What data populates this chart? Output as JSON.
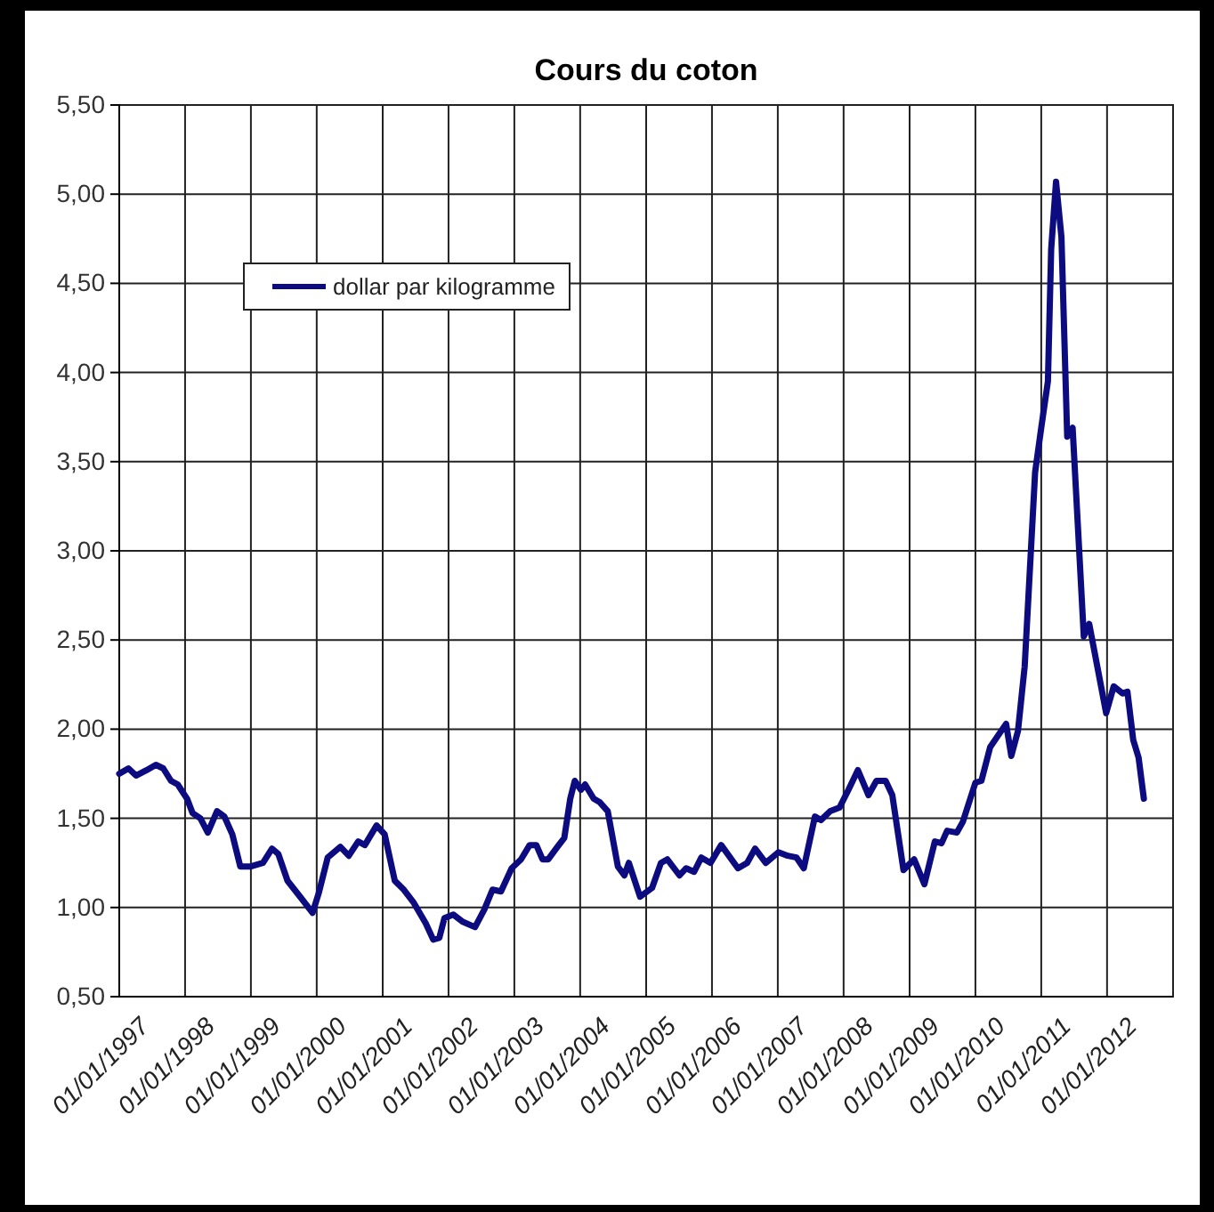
{
  "chart_data": {
    "type": "line",
    "title": "Cours du coton",
    "xlim": [
      "1997-01-01",
      "2013-01-01"
    ],
    "xticks": [
      {
        "value": "1997-01-01",
        "label": "01/01/1997"
      },
      {
        "value": "1998-01-01",
        "label": "01/01/1998"
      },
      {
        "value": "1999-01-01",
        "label": "01/01/1999"
      },
      {
        "value": "2000-01-01",
        "label": "01/01/2000"
      },
      {
        "value": "2001-01-01",
        "label": "01/01/2001"
      },
      {
        "value": "2002-01-01",
        "label": "01/01/2002"
      },
      {
        "value": "2003-01-01",
        "label": "01/01/2003"
      },
      {
        "value": "2004-01-01",
        "label": "01/01/2004"
      },
      {
        "value": "2005-01-01",
        "label": "01/01/2005"
      },
      {
        "value": "2006-01-01",
        "label": "01/01/2006"
      },
      {
        "value": "2007-01-01",
        "label": "01/01/2007"
      },
      {
        "value": "2008-01-01",
        "label": "01/01/2008"
      },
      {
        "value": "2009-01-01",
        "label": "01/01/2009"
      },
      {
        "value": "2010-01-01",
        "label": "01/01/2010"
      },
      {
        "value": "2011-01-01",
        "label": "01/01/2011"
      },
      {
        "value": "2012-01-01",
        "label": "01/01/2012"
      },
      {
        "value": "2013-01-01",
        "label": null
      }
    ],
    "ylim": [
      0.5,
      5.5
    ],
    "yticks": [
      {
        "value": 0.5,
        "label": "0,50"
      },
      {
        "value": 1,
        "label": "1,00"
      },
      {
        "value": 1.5,
        "label": "1,50"
      },
      {
        "value": 2,
        "label": "2,00"
      },
      {
        "value": 2.5,
        "label": "2,50"
      },
      {
        "value": 3,
        "label": "3,00"
      },
      {
        "value": 3.5,
        "label": "3,50"
      },
      {
        "value": 4,
        "label": "4,00"
      },
      {
        "value": 4.5,
        "label": "4,50"
      },
      {
        "value": 5,
        "label": "5,00"
      },
      {
        "value": 5.5,
        "label": "5,50"
      }
    ],
    "grid": true,
    "legend": "top left",
    "marker": "none",
    "line_style": "solid",
    "series": [
      {
        "name": "dollar par kilogramme",
        "color": "#0c0c80",
        "x": [
          "1997-01-01",
          "1997-02-21",
          "1997-04-04",
          "1997-06-02",
          "1997-07-23",
          "1997-09-02",
          "1997-10-15",
          "1997-11-21",
          "1998-01-12",
          "1998-02-11",
          "1998-03-27",
          "1998-05-07",
          "1998-06-27",
          "1998-08-07",
          "1998-09-20",
          "1998-11-03",
          "1999-01-01",
          "1999-03-09",
          "1999-04-28",
          "1999-06-02",
          "1999-07-23",
          "1999-10-01",
          "1999-12-09",
          "2000-01-12",
          "2000-03-02",
          "2000-05-11",
          "2000-06-27",
          "2000-08-18",
          "2000-09-24",
          "2000-11-28",
          "2001-01-12",
          "2001-03-09",
          "2001-04-28",
          "2001-06-20",
          "2001-08-28",
          "2001-10-08",
          "2001-11-11",
          "2001-12-09",
          "2002-01-28",
          "2002-03-20",
          "2002-05-28",
          "2002-07-19",
          "2002-09-02",
          "2002-10-19",
          "2002-12-17",
          "2003-02-07",
          "2003-03-27",
          "2003-05-03",
          "2003-06-06",
          "2003-07-08",
          "2003-08-28",
          "2003-10-05",
          "2003-11-07",
          "2003-12-02",
          "2004-01-05",
          "2004-01-28",
          "2004-03-16",
          "2004-04-19",
          "2004-06-02",
          "2004-07-28",
          "2004-09-02",
          "2004-09-27",
          "2004-11-28",
          "2005-02-03",
          "2005-03-24",
          "2005-04-28",
          "2005-07-05",
          "2005-08-11",
          "2005-09-24",
          "2005-11-03",
          "2005-12-24",
          "2006-02-21",
          "2006-05-25",
          "2006-07-15",
          "2006-08-28",
          "2006-10-26",
          "2007-01-05",
          "2007-02-25",
          "2007-04-15",
          "2007-05-25",
          "2007-07-26",
          "2007-08-28",
          "2007-10-19",
          "2007-12-09",
          "2008-01-28",
          "2008-03-20",
          "2008-05-18",
          "2008-07-01",
          "2008-08-21",
          "2008-09-27",
          "2008-11-28",
          "2009-01-26",
          "2009-03-24",
          "2009-05-21",
          "2009-06-27",
          "2009-07-28",
          "2009-09-20",
          "2009-10-23",
          "2010-01-01",
          "2010-02-03",
          "2010-03-24",
          "2010-06-20",
          "2010-07-19",
          "2010-08-25",
          "2010-10-01",
          "2010-11-28",
          "2011-01-01",
          "2011-02-07",
          "2011-02-25",
          "2011-03-24",
          "2011-04-23",
          "2011-05-25",
          "2011-06-24",
          "2011-08-25",
          "2011-09-24",
          "2011-12-27",
          "2012-02-07",
          "2012-03-27",
          "2012-04-23",
          "2012-05-25",
          "2012-06-24",
          "2012-07-23"
        ],
        "values": [
          1.75,
          1.78,
          1.74,
          1.77,
          1.8,
          1.78,
          1.71,
          1.69,
          1.61,
          1.53,
          1.5,
          1.42,
          1.54,
          1.51,
          1.41,
          1.23,
          1.23,
          1.25,
          1.33,
          1.3,
          1.15,
          1.06,
          0.97,
          1.08,
          1.28,
          1.34,
          1.29,
          1.37,
          1.35,
          1.46,
          1.41,
          1.15,
          1.1,
          1.03,
          0.91,
          0.82,
          0.83,
          0.94,
          0.96,
          0.92,
          0.89,
          0.99,
          1.1,
          1.09,
          1.22,
          1.27,
          1.35,
          1.35,
          1.27,
          1.27,
          1.34,
          1.39,
          1.61,
          1.71,
          1.66,
          1.69,
          1.61,
          1.59,
          1.54,
          1.23,
          1.18,
          1.25,
          1.06,
          1.11,
          1.25,
          1.27,
          1.18,
          1.22,
          1.2,
          1.28,
          1.25,
          1.35,
          1.22,
          1.25,
          1.33,
          1.25,
          1.31,
          1.29,
          1.28,
          1.22,
          1.51,
          1.49,
          1.54,
          1.56,
          1.66,
          1.77,
          1.63,
          1.71,
          1.71,
          1.63,
          1.21,
          1.27,
          1.13,
          1.37,
          1.36,
          1.43,
          1.42,
          1.48,
          1.7,
          1.71,
          1.9,
          2.03,
          1.85,
          1.99,
          2.35,
          3.44,
          3.69,
          3.95,
          4.69,
          5.07,
          4.76,
          3.64,
          3.69,
          2.52,
          2.59,
          2.09,
          2.24,
          2.2,
          2.21,
          1.94,
          1.84,
          1.61
        ]
      }
    ]
  }
}
